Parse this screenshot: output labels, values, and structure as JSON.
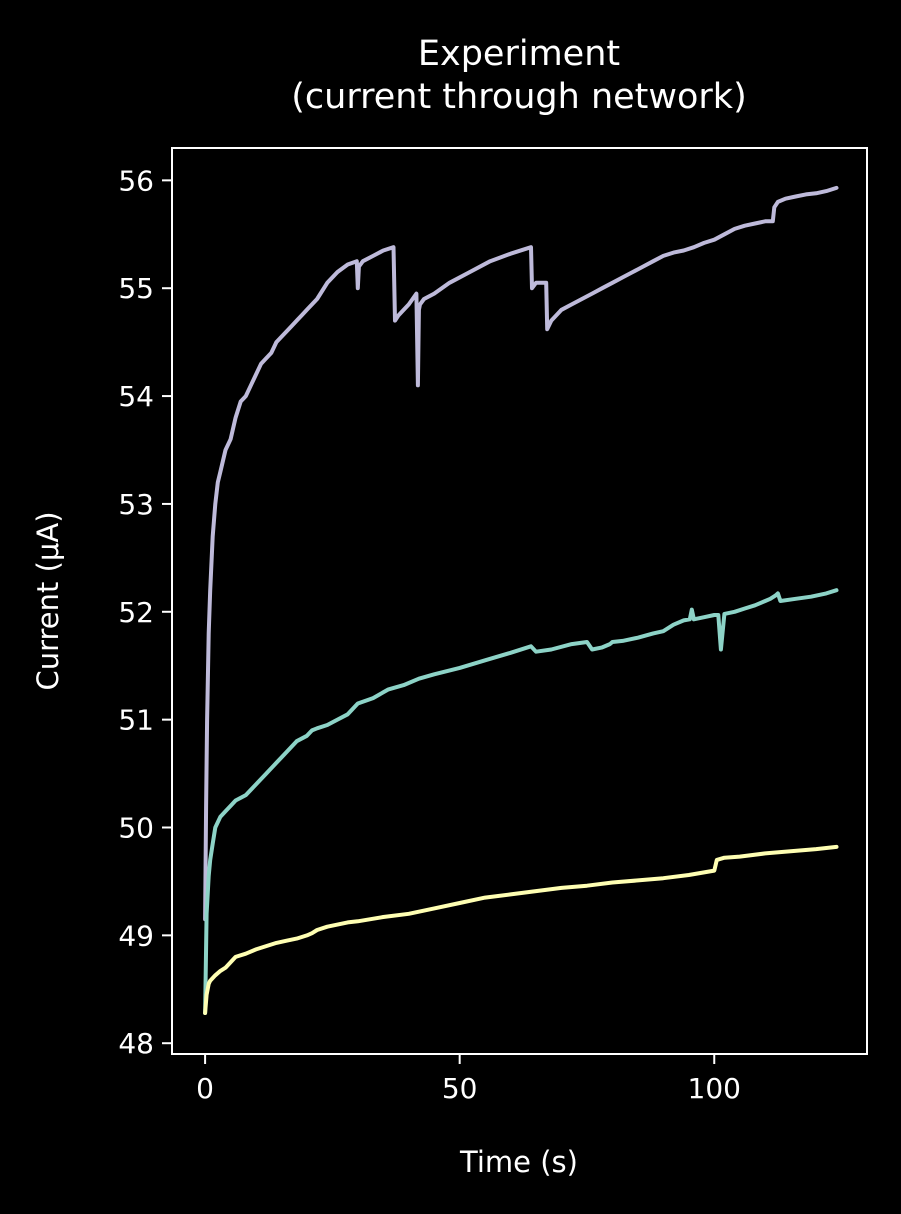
{
  "chart_data": {
    "type": "line",
    "title": "Experiment\n(current through network)",
    "xlabel": "Time (s)",
    "ylabel": "Current (μA)",
    "xlim": [
      -6.5,
      130
    ],
    "ylim": [
      47.9,
      56.3
    ],
    "xticks": [
      0,
      50,
      100
    ],
    "yticks": [
      48,
      49,
      50,
      51,
      52,
      53,
      54,
      55,
      56
    ],
    "grid": false,
    "legend": "none",
    "series": [
      {
        "color": "#bebada",
        "x": [
          0,
          0.2,
          0.4,
          0.7,
          1,
          1.5,
          2,
          2.5,
          3,
          4,
          5,
          6,
          7,
          8,
          9,
          10,
          11,
          12,
          13,
          14,
          15,
          16,
          17,
          18,
          19,
          20,
          22,
          24,
          26,
          28,
          29.8,
          30,
          30.2,
          31,
          33,
          35,
          37,
          37.3,
          38,
          40,
          41.5,
          41.8,
          42,
          42.2,
          43,
          45,
          48,
          52,
          56,
          60,
          64,
          64.2,
          65,
          67,
          67.2,
          68,
          70,
          72,
          74,
          76,
          78,
          80,
          82,
          84,
          86,
          88,
          90,
          92,
          94,
          96,
          98,
          100,
          102,
          104,
          106,
          108,
          110,
          111.5,
          111.8,
          112.5,
          114,
          116,
          118,
          120,
          122,
          124
        ],
        "y": [
          49.15,
          50.2,
          51.0,
          51.8,
          52.2,
          52.7,
          53.0,
          53.2,
          53.3,
          53.5,
          53.6,
          53.8,
          53.95,
          54.0,
          54.1,
          54.2,
          54.3,
          54.35,
          54.4,
          54.5,
          54.55,
          54.6,
          54.65,
          54.7,
          54.75,
          54.8,
          54.9,
          55.05,
          55.15,
          55.22,
          55.25,
          55.0,
          55.2,
          55.25,
          55.3,
          55.35,
          55.38,
          54.7,
          54.75,
          54.85,
          54.95,
          54.1,
          54.8,
          54.85,
          54.9,
          54.95,
          55.05,
          55.15,
          55.25,
          55.32,
          55.38,
          55.0,
          55.05,
          55.05,
          54.62,
          54.7,
          54.8,
          54.85,
          54.9,
          54.95,
          55.0,
          55.05,
          55.1,
          55.15,
          55.2,
          55.25,
          55.3,
          55.33,
          55.35,
          55.38,
          55.42,
          55.45,
          55.5,
          55.55,
          55.58,
          55.6,
          55.62,
          55.62,
          55.75,
          55.8,
          55.83,
          55.85,
          55.87,
          55.88,
          55.9,
          55.93
        ]
      },
      {
        "color": "#8dd3c7",
        "x": [
          0,
          0.3,
          0.7,
          1,
          1.5,
          2,
          3,
          4,
          5,
          6,
          8,
          10,
          12,
          14,
          16,
          18,
          20,
          21,
          22,
          24,
          26,
          28,
          30,
          33,
          36,
          39,
          42,
          45,
          50,
          55,
          60,
          64,
          65,
          68,
          72,
          75,
          76,
          78,
          79.5,
          80,
          82,
          85,
          88,
          90,
          92,
          94,
          95.2,
          95.6,
          96,
          98,
          100,
          100.8,
          101.3,
          102,
          104,
          106,
          108,
          110,
          111,
          112,
          112.5,
          113,
          116,
          119,
          122,
          124
        ],
        "y": [
          48.28,
          49.2,
          49.55,
          49.7,
          49.85,
          50.0,
          50.1,
          50.15,
          50.2,
          50.25,
          50.3,
          50.4,
          50.5,
          50.6,
          50.7,
          50.8,
          50.85,
          50.9,
          50.92,
          50.95,
          51.0,
          51.05,
          51.15,
          51.2,
          51.28,
          51.32,
          51.38,
          51.42,
          51.48,
          51.55,
          51.62,
          51.68,
          51.63,
          51.65,
          51.7,
          51.72,
          51.65,
          51.67,
          51.7,
          51.72,
          51.73,
          51.76,
          51.8,
          51.82,
          51.88,
          51.92,
          51.93,
          52.02,
          51.93,
          51.95,
          51.97,
          51.97,
          51.65,
          51.98,
          52.0,
          52.03,
          52.06,
          52.1,
          52.12,
          52.15,
          52.17,
          52.1,
          52.12,
          52.14,
          52.17,
          52.2
        ]
      },
      {
        "color": "#ffffb3",
        "x": [
          0,
          0.3,
          0.7,
          1,
          2,
          3,
          4,
          5,
          6,
          8,
          10,
          12,
          14,
          16,
          18,
          20,
          21,
          22,
          24,
          26,
          28,
          30,
          35,
          40,
          45,
          50,
          55,
          60,
          65,
          70,
          75,
          80,
          85,
          90,
          95,
          100,
          100.5,
          102,
          105,
          110,
          115,
          120,
          124
        ],
        "y": [
          48.28,
          48.45,
          48.55,
          48.58,
          48.63,
          48.67,
          48.7,
          48.75,
          48.8,
          48.83,
          48.87,
          48.9,
          48.93,
          48.95,
          48.97,
          49.0,
          49.02,
          49.05,
          49.08,
          49.1,
          49.12,
          49.13,
          49.17,
          49.2,
          49.25,
          49.3,
          49.35,
          49.38,
          49.41,
          49.44,
          49.46,
          49.49,
          49.51,
          49.53,
          49.56,
          49.6,
          49.7,
          49.72,
          49.73,
          49.76,
          49.78,
          49.8,
          49.82
        ]
      }
    ]
  }
}
